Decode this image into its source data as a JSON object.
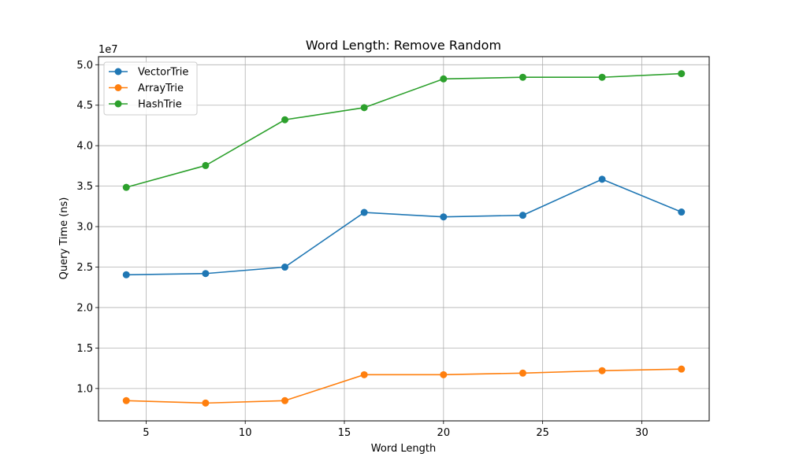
{
  "chart_data": {
    "type": "line",
    "title": "Word Length: Remove Random",
    "xlabel": "Word Length",
    "ylabel": "Query Time (ns)",
    "y_offset_label": "1e7",
    "x": [
      4,
      8,
      12,
      16,
      20,
      24,
      28,
      32
    ],
    "xlim": [
      2.6,
      33.4
    ],
    "ylim": [
      0.6,
      5.1
    ],
    "x_ticks": [
      5,
      10,
      15,
      20,
      25,
      30
    ],
    "y_ticks": [
      1.0,
      1.5,
      2.0,
      2.5,
      3.0,
      3.5,
      4.0,
      4.5,
      5.0
    ],
    "y_tick_labels": [
      "1.0",
      "1.5",
      "2.0",
      "2.5",
      "3.0",
      "3.5",
      "4.0",
      "4.5",
      "5.0"
    ],
    "grid": true,
    "legend_position": "top-left",
    "series": [
      {
        "name": "VectorTrie",
        "color": "#1f77b4",
        "values": [
          2.405,
          2.42,
          2.5,
          3.175,
          3.12,
          3.14,
          3.585,
          3.18
        ]
      },
      {
        "name": "ArrayTrie",
        "color": "#ff7f0e",
        "values": [
          0.85,
          0.82,
          0.85,
          1.17,
          1.17,
          1.19,
          1.22,
          1.24
        ]
      },
      {
        "name": "HashTrie",
        "color": "#2ca02c",
        "values": [
          3.485,
          3.755,
          4.32,
          4.47,
          4.825,
          4.845,
          4.845,
          4.89
        ]
      }
    ]
  }
}
